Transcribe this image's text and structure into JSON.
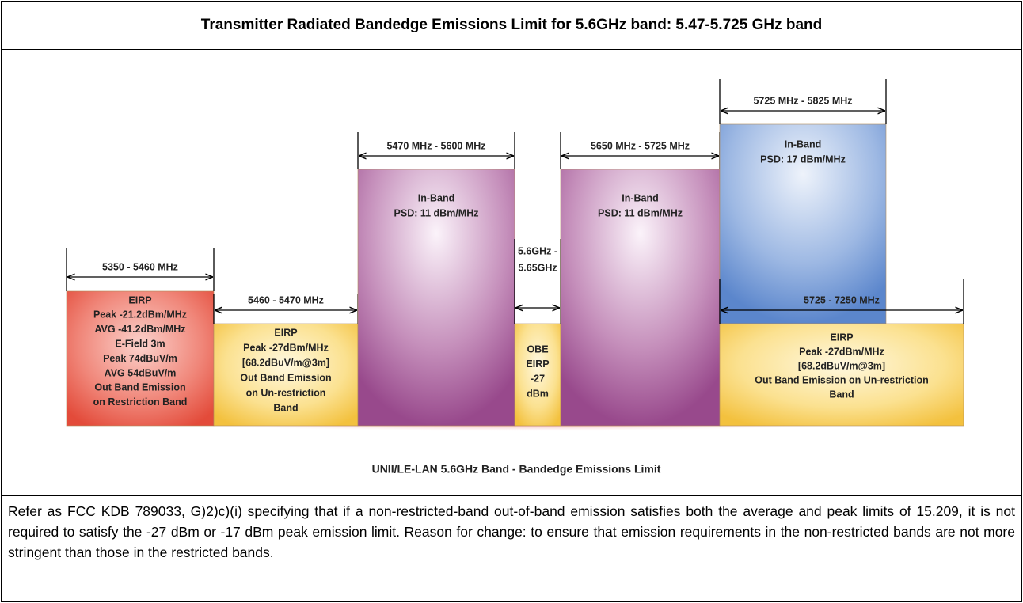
{
  "title": "Transmitter Radiated Bandedge Emissions Limit for 5.6GHz band: 5.47-5.725 GHz band",
  "blocks": [
    {
      "range": [
        "5350 - 5460 MHz"
      ],
      "lines": [
        "EIRP",
        "Peak -21.2dBm/MHz",
        "AVG -41.2dBm/MHz",
        "E-Field 3m",
        "Peak 74dBuV/m",
        "AVG 54dBuV/m",
        "Out Band Emission",
        "on Restriction Band"
      ]
    },
    {
      "range": [
        "5460 - 5470 MHz"
      ],
      "lines": [
        "EIRP",
        "Peak -27dBm/MHz",
        "[68.2dBuV/m@3m]",
        "Out Band Emission",
        "on Un-restriction",
        "Band"
      ]
    },
    {
      "range": [
        "5470 MHz - 5600 MHz"
      ],
      "lines": [
        "In-Band",
        "PSD: 11 dBm/MHz"
      ]
    },
    {
      "range": [
        "5.6GHz -",
        "5.65GHz"
      ],
      "lines": [
        "OBE",
        "EIRP",
        "-27",
        "dBm"
      ]
    },
    {
      "range": [
        "5650 MHz - 5725 MHz"
      ],
      "lines": [
        "In-Band",
        "PSD: 11 dBm/MHz"
      ]
    },
    {
      "range": [
        "5725 MHz - 5825 MHz"
      ],
      "lines": [
        "In-Band",
        "PSD: 17 dBm/MHz"
      ]
    },
    {
      "range": [
        "5725 - 7250 MHz"
      ],
      "lines": [
        "EIRP",
        "Peak -27dBm/MHz",
        "[68.2dBuV/m@3m]",
        "Out Band Emission on Un-restriction",
        "Band"
      ]
    }
  ],
  "caption": "UNII/LE-LAN 5.6GHz Band - Bandedge Emissions Limit",
  "note": "Refer as FCC KDB 789033, G)2)c)(i) specifying that if a non-restricted-band out-of-band emission satisfies both the average and peak limits of 15.209, it is not required to satisfy the -27 dBm or -17 dBm peak emission limit. Reason for change: to ensure that emission requirements in the non-restricted bands are not more stringent than those in the restricted bands."
}
